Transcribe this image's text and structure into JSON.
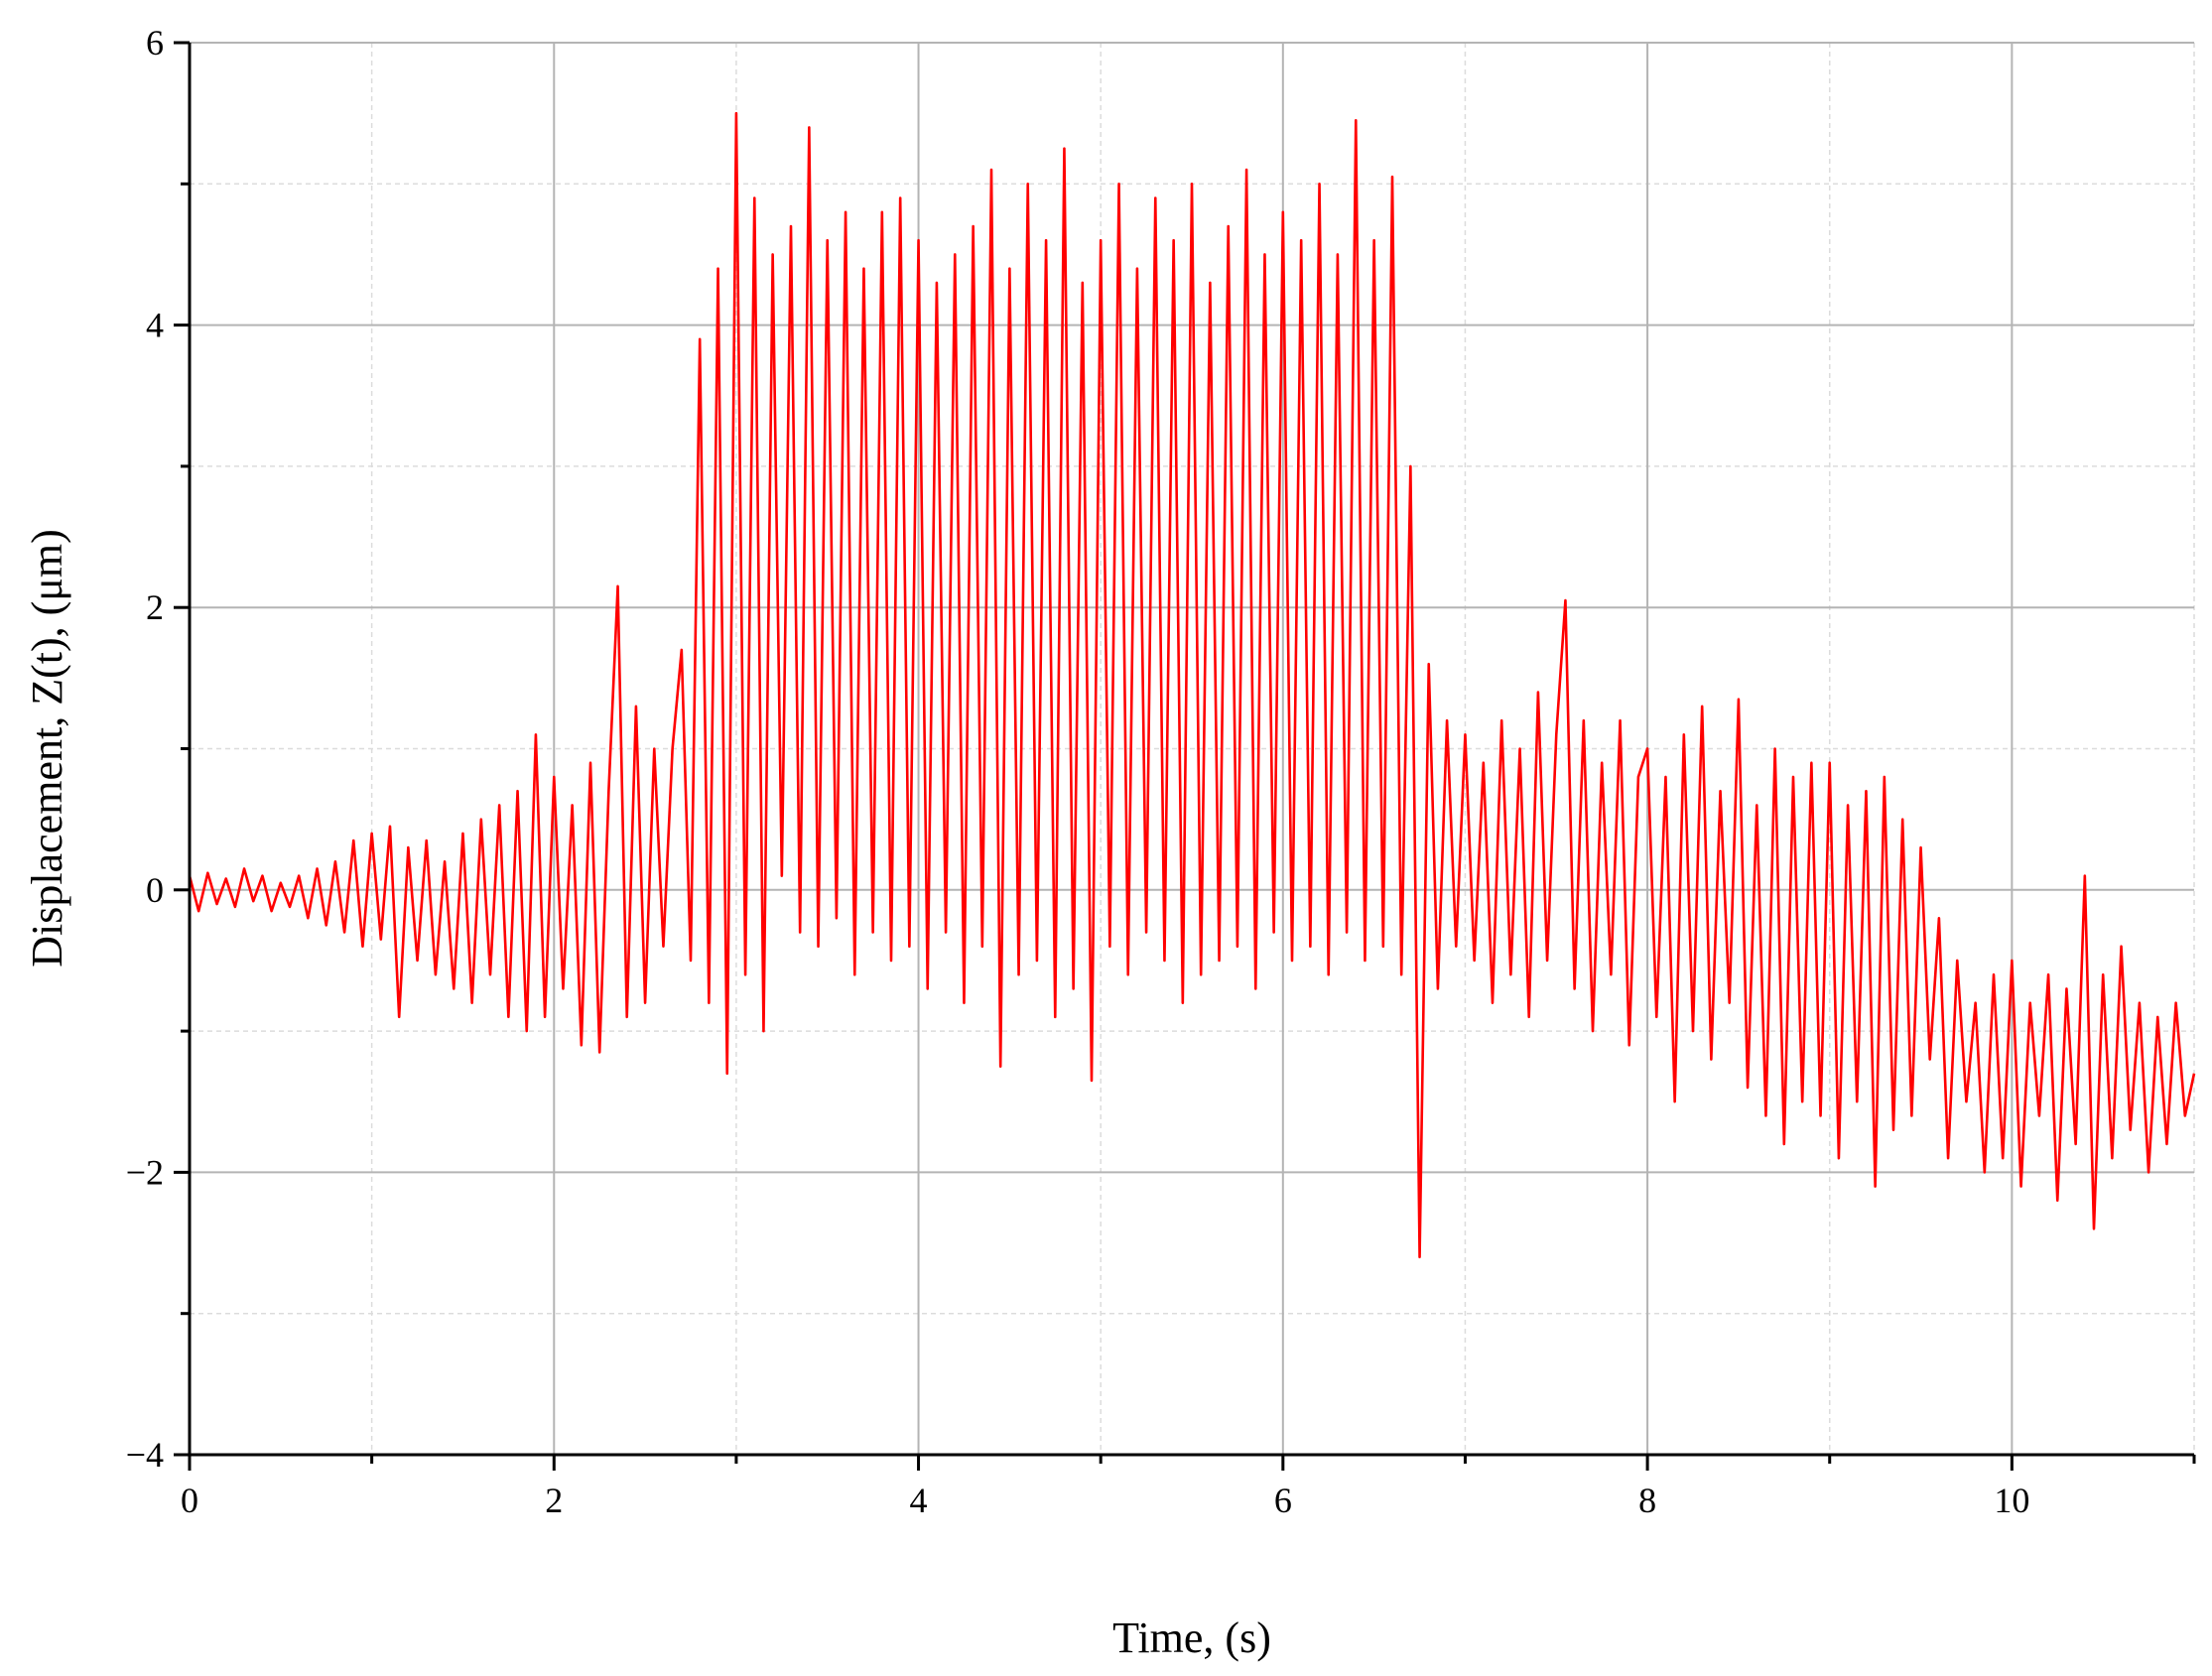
{
  "chart_data": {
    "type": "line",
    "xlabel": "Time, (s)",
    "ylabel": "Displacement, Z(t), (μm)",
    "color": "#ff0000",
    "xlim": [
      0,
      11
    ],
    "xticks": [
      0,
      2,
      4,
      6,
      8,
      10
    ],
    "xminorticks": [
      1,
      3,
      5,
      7,
      9,
      11
    ],
    "ylim": [
      -4,
      6
    ],
    "yticks": [
      -4,
      -2,
      0,
      2,
      4,
      6
    ],
    "yminorticks": [
      -3,
      -1,
      1,
      3,
      5
    ],
    "grid": true,
    "x": [
      0,
      0.05,
      0.1,
      0.15,
      0.2,
      0.25,
      0.3,
      0.35,
      0.4,
      0.45,
      0.5,
      0.55,
      0.6,
      0.65,
      0.7,
      0.75,
      0.8,
      0.85,
      0.9,
      0.95,
      1,
      1.05,
      1.1,
      1.15,
      1.2,
      1.25,
      1.3,
      1.35,
      1.4,
      1.45,
      1.5,
      1.55,
      1.6,
      1.65,
      1.7,
      1.75,
      1.8,
      1.85,
      1.9,
      1.95,
      2,
      2.05,
      2.1,
      2.15,
      2.2,
      2.25,
      2.3,
      2.35,
      2.4,
      2.45,
      2.5,
      2.55,
      2.6,
      2.65,
      2.7,
      2.75,
      2.8,
      2.85,
      2.9,
      2.95,
      3,
      3.05,
      3.1,
      3.15,
      3.2,
      3.25,
      3.3,
      3.35,
      3.4,
      3.45,
      3.5,
      3.55,
      3.6,
      3.65,
      3.7,
      3.75,
      3.8,
      3.85,
      3.9,
      3.95,
      4,
      4.05,
      4.1,
      4.15,
      4.2,
      4.25,
      4.3,
      4.35,
      4.4,
      4.45,
      4.5,
      4.55,
      4.6,
      4.65,
      4.7,
      4.75,
      4.8,
      4.85,
      4.9,
      4.95,
      5,
      5.05,
      5.1,
      5.15,
      5.2,
      5.25,
      5.3,
      5.35,
      5.4,
      5.45,
      5.5,
      5.55,
      5.6,
      5.65,
      5.7,
      5.75,
      5.8,
      5.85,
      5.9,
      5.95,
      6,
      6.05,
      6.1,
      6.15,
      6.2,
      6.25,
      6.3,
      6.35,
      6.4,
      6.45,
      6.5,
      6.55,
      6.6,
      6.65,
      6.7,
      6.75,
      6.8,
      6.85,
      6.9,
      6.95,
      7,
      7.05,
      7.1,
      7.15,
      7.2,
      7.25,
      7.3,
      7.35,
      7.4,
      7.45,
      7.5,
      7.55,
      7.6,
      7.65,
      7.7,
      7.75,
      7.8,
      7.85,
      7.9,
      7.95,
      8,
      8.05,
      8.1,
      8.15,
      8.2,
      8.25,
      8.3,
      8.35,
      8.4,
      8.45,
      8.5,
      8.55,
      8.6,
      8.65,
      8.7,
      8.75,
      8.8,
      8.85,
      8.9,
      8.95,
      9,
      9.05,
      9.1,
      9.15,
      9.2,
      9.25,
      9.3,
      9.35,
      9.4,
      9.45,
      9.5,
      9.55,
      9.6,
      9.65,
      9.7,
      9.75,
      9.8,
      9.85,
      9.9,
      9.95,
      10,
      10.05,
      10.1,
      10.15,
      10.2,
      10.25,
      10.3,
      10.35,
      10.4,
      10.45,
      10.5,
      10.55,
      10.6,
      10.65,
      10.7,
      10.75,
      10.8,
      10.85,
      10.9,
      10.95,
      11
    ],
    "values": [
      0.1,
      -0.15,
      0.12,
      -0.1,
      0.08,
      -0.12,
      0.15,
      -0.08,
      0.1,
      -0.15,
      0.05,
      -0.12,
      0.1,
      -0.2,
      0.15,
      -0.25,
      0.2,
      -0.3,
      0.35,
      -0.4,
      0.4,
      -0.35,
      0.45,
      -0.9,
      0.3,
      -0.5,
      0.35,
      -0.6,
      0.2,
      -0.7,
      0.4,
      -0.8,
      0.5,
      -0.6,
      0.6,
      -0.9,
      0.7,
      -1.0,
      1.1,
      -0.9,
      0.8,
      -0.7,
      0.6,
      -1.1,
      0.9,
      -1.15,
      0.7,
      2.15,
      -0.9,
      1.3,
      -0.8,
      1.0,
      -0.4,
      1.0,
      1.7,
      -0.5,
      3.9,
      -0.8,
      4.4,
      -1.3,
      5.5,
      -0.6,
      4.9,
      -1.0,
      4.5,
      0.1,
      4.7,
      -0.3,
      5.4,
      -0.4,
      4.6,
      -0.2,
      4.8,
      -0.6,
      4.4,
      -0.3,
      4.8,
      -0.5,
      4.9,
      -0.4,
      4.6,
      -0.7,
      4.3,
      -0.3,
      4.5,
      -0.8,
      4.7,
      -0.4,
      5.1,
      -1.25,
      4.4,
      -0.6,
      5.0,
      -0.5,
      4.6,
      -0.9,
      5.25,
      -0.7,
      4.3,
      -1.35,
      4.6,
      -0.4,
      5.0,
      -0.6,
      4.4,
      -0.3,
      4.9,
      -0.5,
      4.6,
      -0.8,
      5.0,
      -0.6,
      4.3,
      -0.5,
      4.7,
      -0.4,
      5.1,
      -0.7,
      4.5,
      -0.3,
      4.8,
      -0.5,
      4.6,
      -0.4,
      5.0,
      -0.6,
      4.5,
      -0.3,
      5.45,
      -0.5,
      4.6,
      -0.4,
      5.05,
      -0.6,
      3.0,
      -2.6,
      1.6,
      -0.7,
      1.2,
      -0.4,
      1.1,
      -0.5,
      0.9,
      -0.8,
      1.2,
      -0.6,
      1.0,
      -0.9,
      1.4,
      -0.5,
      1.1,
      2.05,
      -0.7,
      1.2,
      -1.0,
      0.9,
      -0.6,
      1.2,
      -1.1,
      0.8,
      1.0,
      -0.9,
      0.8,
      -1.5,
      1.1,
      -1.0,
      1.3,
      -1.2,
      0.7,
      -0.8,
      1.35,
      -1.4,
      0.6,
      -1.6,
      1.0,
      -1.8,
      0.8,
      -1.5,
      0.9,
      -1.6,
      0.9,
      -1.9,
      0.6,
      -1.5,
      0.7,
      -2.1,
      0.8,
      -1.7,
      0.5,
      -1.6,
      0.3,
      -1.2,
      -0.2,
      -1.9,
      -0.5,
      -1.5,
      -0.8,
      -2.0,
      -0.6,
      -1.9,
      -0.5,
      -2.1,
      -0.8,
      -1.6,
      -0.6,
      -2.2,
      -0.7,
      -1.8,
      0.1,
      -2.4,
      -0.6,
      -1.9,
      -0.4,
      -1.7,
      -0.8,
      -2.0,
      -0.9,
      -1.8,
      -0.8,
      -1.6,
      -1.3
    ]
  }
}
